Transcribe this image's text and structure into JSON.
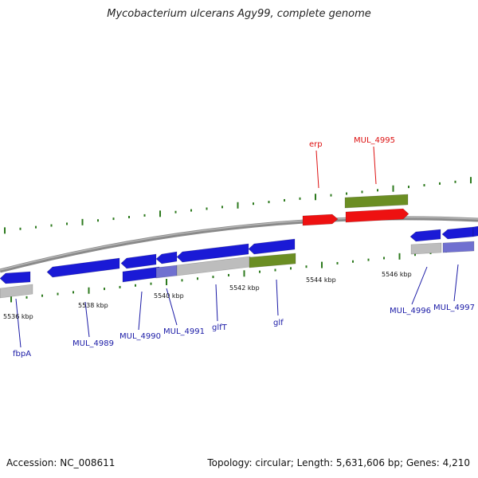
{
  "title": "Mycobacterium ulcerans Agy99, complete genome",
  "footer": {
    "accession": "Accession: NC_008611",
    "stats": "Topology: circular; Length: 5,631,606 bp; Genes: 4,210"
  },
  "colors": {
    "backbone": "#8a8a8a",
    "tick": "#2d7a1e",
    "cds": "#1a1ad6",
    "cds_highlight": "#ee1111",
    "rna_like": "#6b8e23",
    "pseudo": "#bdbdbd",
    "overlap": "#7070d0",
    "label_blue": "#1a1aa6",
    "label_red": "#dd1111"
  },
  "scale_labels": [
    "5536 kbp",
    "5538 kbp",
    "5540 kbp",
    "5542 kbp",
    "5544 kbp",
    "5546 kbp"
  ],
  "gene_labels": [
    {
      "id": "fbpA",
      "text": "fbpA",
      "color": "label_blue"
    },
    {
      "id": "MUL_4989",
      "text": "MUL_4989",
      "color": "label_blue"
    },
    {
      "id": "MUL_4990",
      "text": "MUL_4990",
      "color": "label_blue"
    },
    {
      "id": "MUL_4991",
      "text": "MUL_4991",
      "color": "label_blue"
    },
    {
      "id": "glfT",
      "text": "glfT",
      "color": "label_blue"
    },
    {
      "id": "glf",
      "text": "glf",
      "color": "label_blue"
    },
    {
      "id": "MUL_4996",
      "text": "MUL_4996",
      "color": "label_blue"
    },
    {
      "id": "MUL_4997",
      "text": "MUL_4997",
      "color": "label_blue"
    },
    {
      "id": "erp",
      "text": "erp",
      "color": "label_red"
    },
    {
      "id": "MUL_4995",
      "text": "MUL_4995",
      "color": "label_red"
    }
  ]
}
